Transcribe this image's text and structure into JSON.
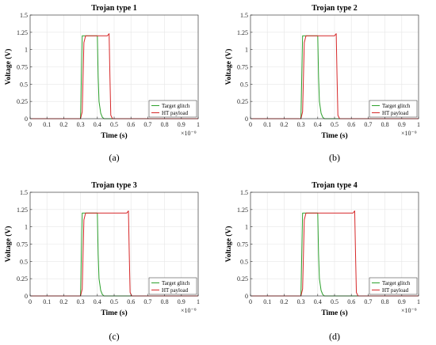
{
  "figure": {
    "panels": [
      {
        "caption": "(a)",
        "chart_data": {
          "type": "line",
          "title": "Trojan type 1",
          "xlabel": "Time (s)",
          "ylabel": "Voltage (V)",
          "x_exponent_label": "×10⁻⁹",
          "xlim": [
            0,
            1
          ],
          "ylim": [
            0,
            1.5
          ],
          "x_ticks": [
            "0",
            "0.1",
            "0.2",
            "0.3",
            "0.4",
            "0.5",
            "0.6",
            "0.7",
            "0.8",
            "0.9",
            "1"
          ],
          "y_ticks": [
            "0",
            "0.25",
            "0.5",
            "0.75",
            "1",
            "1.25",
            "1.5"
          ],
          "grid": true,
          "legend_position": "bottom-right",
          "series": [
            {
              "name": "Target glitch",
              "color": "#2ca02c",
              "x": [
                0,
                0.3,
                0.305,
                0.31,
                0.4,
                0.405,
                0.41,
                0.42,
                0.43,
                0.44,
                1
              ],
              "y": [
                0,
                0,
                0.6,
                1.2,
                1.2,
                0.6,
                0.25,
                0.08,
                0.02,
                0.0,
                0
              ]
            },
            {
              "name": "HT payload",
              "color": "#d62728",
              "x": [
                0,
                0.3,
                0.31,
                0.315,
                0.32,
                0.33,
                0.46,
                0.47,
                0.475,
                0.48,
                0.49,
                1
              ],
              "y": [
                0,
                0,
                0.1,
                0.6,
                1.1,
                1.2,
                1.2,
                1.23,
                0.6,
                0.05,
                0,
                0
              ]
            }
          ]
        }
      },
      {
        "caption": "(b)",
        "chart_data": {
          "type": "line",
          "title": "Trojan type 2",
          "xlabel": "Time (s)",
          "ylabel": "Voltage (V)",
          "x_exponent_label": "×10⁻⁹",
          "xlim": [
            0,
            1
          ],
          "ylim": [
            0,
            1.5
          ],
          "x_ticks": [
            "0",
            "0.1",
            "0.2",
            "0.3",
            "0.4",
            "0.5",
            "0.6",
            "0.7",
            "0.8",
            "0.9",
            "1"
          ],
          "y_ticks": [
            "0",
            "0.25",
            "0.5",
            "0.75",
            "1",
            "1.25",
            "1.5"
          ],
          "grid": true,
          "legend_position": "bottom-right",
          "series": [
            {
              "name": "Target glitch",
              "color": "#2ca02c",
              "x": [
                0,
                0.3,
                0.305,
                0.31,
                0.4,
                0.405,
                0.41,
                0.42,
                0.43,
                0.44,
                1
              ],
              "y": [
                0,
                0,
                0.6,
                1.2,
                1.2,
                0.6,
                0.25,
                0.08,
                0.02,
                0.0,
                0
              ]
            },
            {
              "name": "HT payload",
              "color": "#d62728",
              "x": [
                0,
                0.3,
                0.31,
                0.315,
                0.32,
                0.33,
                0.5,
                0.51,
                0.515,
                0.52,
                0.53,
                1
              ],
              "y": [
                0,
                0,
                0.1,
                0.6,
                1.1,
                1.2,
                1.2,
                1.23,
                0.6,
                0.05,
                0,
                0
              ]
            }
          ]
        }
      },
      {
        "caption": "(c)",
        "chart_data": {
          "type": "line",
          "title": "Trojan type 3",
          "xlabel": "Time (s)",
          "ylabel": "Voltage (V)",
          "x_exponent_label": "×10⁻⁹",
          "xlim": [
            0,
            1
          ],
          "ylim": [
            0,
            1.5
          ],
          "x_ticks": [
            "0",
            "0.1",
            "0.2",
            "0.3",
            "0.4",
            "0.5",
            "0.6",
            "0.7",
            "0.8",
            "0.9",
            "1"
          ],
          "y_ticks": [
            "0",
            "0.25",
            "0.5",
            "0.75",
            "1",
            "1.25",
            "1.5"
          ],
          "grid": true,
          "legend_position": "bottom-right",
          "series": [
            {
              "name": "Target glitch",
              "color": "#2ca02c",
              "x": [
                0,
                0.3,
                0.305,
                0.31,
                0.4,
                0.405,
                0.41,
                0.42,
                0.43,
                0.44,
                1
              ],
              "y": [
                0,
                0,
                0.6,
                1.2,
                1.2,
                0.6,
                0.25,
                0.08,
                0.02,
                0.0,
                0
              ]
            },
            {
              "name": "HT payload",
              "color": "#d62728",
              "x": [
                0,
                0.3,
                0.31,
                0.315,
                0.32,
                0.33,
                0.575,
                0.585,
                0.59,
                0.595,
                0.605,
                1
              ],
              "y": [
                0,
                0,
                0.1,
                0.6,
                1.1,
                1.2,
                1.2,
                1.23,
                0.6,
                0.05,
                0,
                0
              ]
            }
          ]
        }
      },
      {
        "caption": "(d)",
        "chart_data": {
          "type": "line",
          "title": "Trojan type 4",
          "xlabel": "Time (s)",
          "ylabel": "Voltage (V)",
          "x_exponent_label": "×10⁻⁹",
          "xlim": [
            0,
            1
          ],
          "ylim": [
            0,
            1.5
          ],
          "x_ticks": [
            "0",
            "0.1",
            "0.2",
            "0.3",
            "0.4",
            "0.5",
            "0.6",
            "0.7",
            "0.8",
            "0.9",
            "1"
          ],
          "y_ticks": [
            "0",
            "0.25",
            "0.5",
            "0.75",
            "1",
            "1.25",
            "1.5"
          ],
          "grid": true,
          "legend_position": "bottom-right",
          "series": [
            {
              "name": "Target glitch",
              "color": "#2ca02c",
              "x": [
                0,
                0.3,
                0.305,
                0.31,
                0.4,
                0.405,
                0.41,
                0.42,
                0.43,
                0.44,
                1
              ],
              "y": [
                0,
                0,
                0.6,
                1.2,
                1.2,
                0.6,
                0.25,
                0.08,
                0.02,
                0.0,
                0
              ]
            },
            {
              "name": "HT payload",
              "color": "#d62728",
              "x": [
                0,
                0.3,
                0.31,
                0.315,
                0.32,
                0.33,
                0.61,
                0.62,
                0.625,
                0.63,
                0.64,
                1
              ],
              "y": [
                0,
                0,
                0.1,
                0.6,
                1.1,
                1.2,
                1.2,
                1.23,
                0.6,
                0.05,
                0,
                0
              ]
            }
          ]
        }
      }
    ]
  }
}
